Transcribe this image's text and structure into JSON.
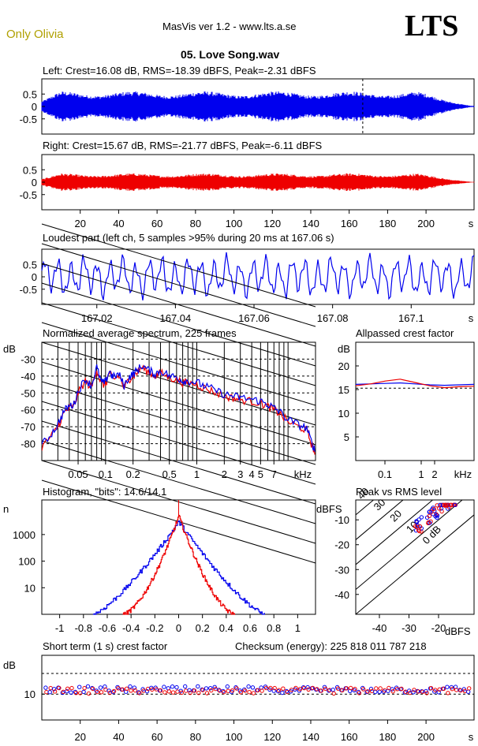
{
  "header": {
    "artist": "Only Olivia",
    "app_title": "MasVis ver 1.2 - www.lts.a.se",
    "logo": "LTS",
    "filename": "05. Love Song.wav"
  },
  "colors": {
    "left": "#0000ee",
    "right": "#ee0000",
    "artist": "#b0a000",
    "grid_dash": "#000000"
  },
  "chart_data": [
    {
      "id": "left_waveform",
      "type": "area",
      "title": "Left: Crest=16.08 dB, RMS=-18.39 dBFS, Peak=-2.31 dBFS",
      "series": [
        {
          "name": "Left",
          "color": "#0000ee"
        }
      ],
      "ylim": [
        -1,
        1
      ],
      "yticks": [
        "0.5",
        "0",
        "-0.5"
      ],
      "xlim": [
        0,
        225
      ],
      "marker_s": 167.06
    },
    {
      "id": "right_waveform",
      "type": "area",
      "title": "Right: Crest=15.67 dB, RMS=-21.77 dBFS, Peak=-6.11 dBFS",
      "series": [
        {
          "name": "Right",
          "color": "#ee0000"
        }
      ],
      "ylim": [
        -1,
        1
      ],
      "yticks": [
        "0.5",
        "0",
        "-0.5"
      ],
      "xlim": [
        0,
        225
      ],
      "xticks": [
        "20",
        "40",
        "60",
        "80",
        "100",
        "120",
        "140",
        "160",
        "180",
        "200",
        "s"
      ]
    },
    {
      "id": "loudest_part",
      "type": "line",
      "title": "Loudest part (left  ch, 5 samples >95% during 20 ms at 167.06 s)",
      "ylim": [
        -1,
        1
      ],
      "yticks": [
        "0.5",
        "0",
        "-0.5"
      ],
      "xlim": [
        167.006,
        167.116
      ],
      "xticks": [
        "167.02",
        "167.04",
        "167.06",
        "167.08",
        "167.1",
        "s"
      ]
    },
    {
      "id": "spectrum",
      "type": "line",
      "title": "Normalized average spectrum, 225 frames",
      "ylabel": "dB",
      "yticks": [
        "-30",
        "-40",
        "-50",
        "-60",
        "-70",
        "-80"
      ],
      "ylim": [
        -90,
        -20
      ],
      "xlim_khz": [
        0.02,
        20
      ],
      "xscale": "log",
      "xticks": [
        "0.05",
        "0.1",
        "0.2",
        "0.5",
        "1",
        "2",
        "3",
        "4",
        "5",
        "7",
        "kHz"
      ],
      "grid": true,
      "points_khz_db": [
        [
          0.02,
          -82
        ],
        [
          0.025,
          -76
        ],
        [
          0.03,
          -70
        ],
        [
          0.035,
          -62
        ],
        [
          0.04,
          -59
        ],
        [
          0.045,
          -58
        ],
        [
          0.05,
          -50
        ],
        [
          0.06,
          -43
        ],
        [
          0.07,
          -47
        ],
        [
          0.08,
          -36
        ],
        [
          0.09,
          -45
        ],
        [
          0.1,
          -45
        ],
        [
          0.11,
          -38
        ],
        [
          0.12,
          -42
        ],
        [
          0.14,
          -40
        ],
        [
          0.16,
          -47
        ],
        [
          0.18,
          -42
        ],
        [
          0.2,
          -40
        ],
        [
          0.22,
          -38
        ],
        [
          0.25,
          -35
        ],
        [
          0.3,
          -38
        ],
        [
          0.35,
          -40
        ],
        [
          0.4,
          -38
        ],
        [
          0.5,
          -41
        ],
        [
          0.6,
          -42
        ],
        [
          0.7,
          -44
        ],
        [
          0.8,
          -44
        ],
        [
          1.0,
          -45
        ],
        [
          1.2,
          -47
        ],
        [
          1.5,
          -49
        ],
        [
          2.0,
          -52
        ],
        [
          2.5,
          -53
        ],
        [
          3.0,
          -54
        ],
        [
          4.0,
          -55
        ],
        [
          5.0,
          -56
        ],
        [
          6.0,
          -58
        ],
        [
          7.0,
          -60
        ],
        [
          8.0,
          -62
        ],
        [
          10,
          -67
        ],
        [
          13,
          -70
        ],
        [
          16,
          -72
        ],
        [
          18,
          -80
        ],
        [
          20,
          -86
        ]
      ]
    },
    {
      "id": "allpassed_crest",
      "type": "line",
      "title": "Allpassed crest factor",
      "ylabel": "dB",
      "yticks": [
        "20",
        "15",
        "10",
        "5"
      ],
      "ylim": [
        0,
        25
      ],
      "xticks": [
        "0.1",
        "1",
        "2",
        "kHz"
      ],
      "series": [
        {
          "name": "Left",
          "values": [
            16.1,
            16.2,
            16.3,
            16.4,
            16.2,
            16.0,
            15.9,
            16.0,
            16.1
          ]
        },
        {
          "name": "Right",
          "values": [
            15.8,
            16.2,
            16.8,
            17.2,
            16.5,
            15.8,
            15.4,
            15.6,
            15.7
          ]
        }
      ]
    },
    {
      "id": "histogram",
      "type": "line",
      "title": "Histogram, \"bits\": 14.6/14.1",
      "ylabel": "n",
      "yscale": "log",
      "yticks": [
        "1000",
        "100",
        "10"
      ],
      "ylim": [
        1,
        20000
      ],
      "xlim": [
        -1.15,
        1.15
      ],
      "xticks": [
        "-1",
        "-0.8",
        "-0.6",
        "-0.4",
        "-0.2",
        "0",
        "0.2",
        "0.4",
        "0.6",
        "0.8",
        "1"
      ],
      "series": [
        {
          "name": "Left",
          "half_width": 0.72,
          "peak": 3000
        },
        {
          "name": "Right",
          "half_width": 0.47,
          "peak": 5000
        }
      ]
    },
    {
      "id": "peak_vs_rms",
      "type": "scatter",
      "title": "Peak vs RMS level",
      "ylabel": "dBFS",
      "xlabel": "dBFS",
      "xticks": [
        "-40",
        "-30",
        "-20"
      ],
      "yticks": [
        "-10",
        "-20",
        "-30",
        "-40"
      ],
      "xlim": [
        -48,
        -8
      ],
      "ylim": [
        -48,
        -2
      ],
      "diag_labels": [
        "40",
        "30",
        "20",
        "10",
        "0 dB"
      ]
    },
    {
      "id": "short_term_crest",
      "type": "scatter",
      "title": "Short term (1 s) crest factor",
      "checksum": "Checksum (energy):  225 818 011 787 218",
      "ylabel": "dB",
      "yticks": [
        "10"
      ],
      "ylim": [
        0,
        25
      ],
      "xlim": [
        0,
        225
      ],
      "xticks": [
        "20",
        "40",
        "60",
        "80",
        "100",
        "120",
        "140",
        "160",
        "180",
        "200",
        "s"
      ]
    }
  ]
}
